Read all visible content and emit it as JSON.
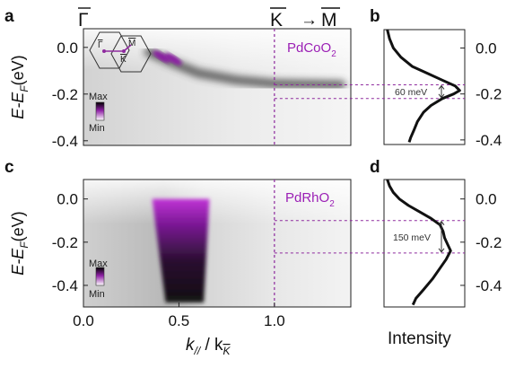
{
  "panel_labels": {
    "a": "a",
    "b": "b",
    "c": "c",
    "d": "d"
  },
  "top_labels": {
    "gamma": "Γ",
    "kbar": "K",
    "arrow": "→",
    "mbar": "M"
  },
  "inset": {
    "gamma": "Γ",
    "k": "K",
    "m": "M"
  },
  "colorbar": {
    "max": "Max",
    "min": "Min"
  },
  "colors": {
    "accent": "#9b1fb5",
    "dashed": "#8e2a9e",
    "dark": "#111111",
    "grey": "#c9c9c9"
  },
  "chart_data": [
    {
      "panel": "a",
      "type": "heatmap",
      "title": "PdCoO2",
      "title_main": "PdCoO",
      "title_sub": "2",
      "xlim": [
        0.0,
        1.4
      ],
      "ylim": [
        -0.42,
        0.08
      ],
      "ylabel_main": "E-E",
      "ylabel_sub": "F",
      "ylabel_unit": "(eV)",
      "yticks": [
        0.0,
        -0.2,
        -0.4
      ],
      "ytick_labels": [
        "0.0",
        "-0.2",
        "-0.4"
      ],
      "vline_x": 1.0,
      "band": [
        {
          "k": 0.34,
          "E": -0.02
        },
        {
          "k": 0.45,
          "E": -0.06
        },
        {
          "k": 0.6,
          "E": -0.11
        },
        {
          "k": 0.8,
          "E": -0.14
        },
        {
          "k": 1.0,
          "E": -0.155
        },
        {
          "k": 1.35,
          "E": -0.16
        }
      ],
      "hotspots": [
        {
          "k": 0.41,
          "E": -0.04
        },
        {
          "k": 0.47,
          "E": -0.05
        }
      ]
    },
    {
      "panel": "b",
      "type": "line",
      "xlabel": "Intensity",
      "yticks": [
        0.0,
        -0.2,
        -0.4
      ],
      "ytick_labels": [
        "0.0",
        "-0.2",
        "-0.4"
      ],
      "ylim": [
        -0.42,
        0.08
      ],
      "x": [
        0.02,
        0.05,
        0.1,
        0.2,
        0.35,
        0.55,
        0.75,
        0.92,
        0.98,
        0.9,
        0.75,
        0.6,
        0.5,
        0.42,
        0.37,
        0.33,
        0.31
      ],
      "y": [
        0.08,
        0.04,
        0.0,
        -0.04,
        -0.08,
        -0.11,
        -0.14,
        -0.165,
        -0.185,
        -0.2,
        -0.22,
        -0.25,
        -0.28,
        -0.32,
        -0.36,
        -0.39,
        -0.41
      ],
      "annotation": "60 meV",
      "dashed_levels": [
        -0.16,
        -0.22
      ]
    },
    {
      "panel": "c",
      "type": "heatmap",
      "title": "PdRhO2",
      "title_main": "PdRhO",
      "title_sub": "2",
      "xlim": [
        0.0,
        1.4
      ],
      "ylim": [
        -0.5,
        0.09
      ],
      "xticks": [
        0.0,
        0.5,
        1.0
      ],
      "xtick_labels": [
        "0.0",
        "0.5",
        "1.0"
      ],
      "xlabel_main": "k",
      "xlabel_sub1": "//",
      "xlabel_mid": " / k",
      "xlabel_sub2": "K",
      "ylabel_main": "E-E",
      "ylabel_sub": "F",
      "ylabel_unit": "(eV)",
      "yticks": [
        0.0,
        -0.2,
        -0.4
      ],
      "ytick_labels": [
        "0.0",
        "-0.2",
        "-0.4"
      ],
      "vline_x": 1.0,
      "band": [
        {
          "k": 0.36,
          "E": 0.0
        },
        {
          "k": 0.66,
          "E": 0.0
        },
        {
          "k": 0.63,
          "E": -0.48
        },
        {
          "k": 0.43,
          "E": -0.48
        }
      ]
    },
    {
      "panel": "d",
      "type": "line",
      "yticks": [
        0.0,
        -0.2,
        -0.4
      ],
      "ytick_labels": [
        "0.0",
        "-0.2",
        "-0.4"
      ],
      "ylim": [
        -0.5,
        0.09
      ],
      "x": [
        0.02,
        0.05,
        0.1,
        0.18,
        0.3,
        0.45,
        0.6,
        0.72,
        0.76,
        0.78,
        0.82,
        0.86,
        0.8,
        0.72,
        0.62,
        0.5,
        0.4,
        0.36
      ],
      "y": [
        0.09,
        0.06,
        0.03,
        0.0,
        -0.03,
        -0.06,
        -0.09,
        -0.12,
        -0.15,
        -0.18,
        -0.21,
        -0.24,
        -0.28,
        -0.32,
        -0.37,
        -0.42,
        -0.46,
        -0.49
      ],
      "annotation": "150 meV",
      "dashed_levels": [
        -0.1,
        -0.25
      ]
    }
  ]
}
